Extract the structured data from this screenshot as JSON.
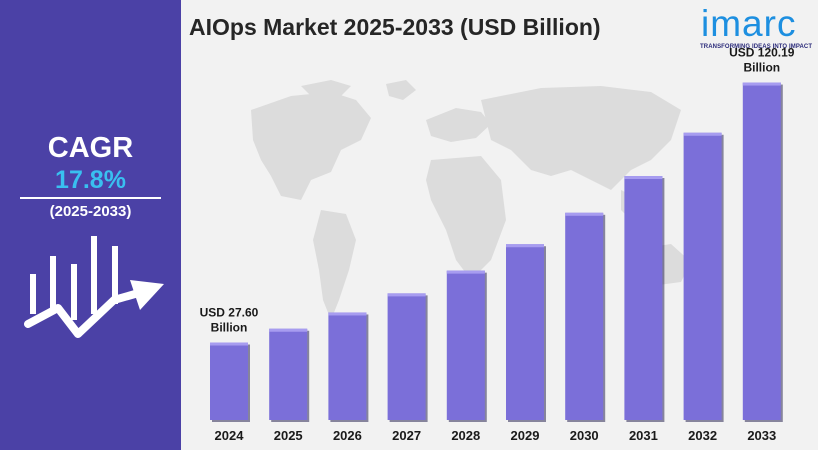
{
  "colors": {
    "panel": "#4b41a6",
    "bar": "#7b6fd9",
    "cagr_value": "#39c0f0",
    "logo": "#1d8fe0"
  },
  "sidebar": {
    "cagr_label": "CAGR",
    "cagr_value": "17.8%",
    "cagr_period": "(2025-2033)",
    "icon": "growth-bars-arrow-icon"
  },
  "logo": {
    "text": "imarc",
    "tagline": "TRANSFORMING IDEAS INTO IMPACT"
  },
  "chart_data": {
    "type": "bar",
    "title": "AIOps Market 2025-2033 (USD Billion)",
    "categories": [
      "2024",
      "2025",
      "2026",
      "2027",
      "2028",
      "2029",
      "2030",
      "2031",
      "2032",
      "2033"
    ],
    "values": [
      27.6,
      32.5,
      38.3,
      45.1,
      53.2,
      62.6,
      73.8,
      86.9,
      102.3,
      120.19
    ],
    "ylim": [
      0,
      130
    ],
    "grid": false,
    "annotations": [
      {
        "category": "2024",
        "line1": "USD 27.60",
        "line2": "Billion"
      },
      {
        "category": "2033",
        "line1": "USD 120.19",
        "line2": "Billion"
      }
    ]
  }
}
